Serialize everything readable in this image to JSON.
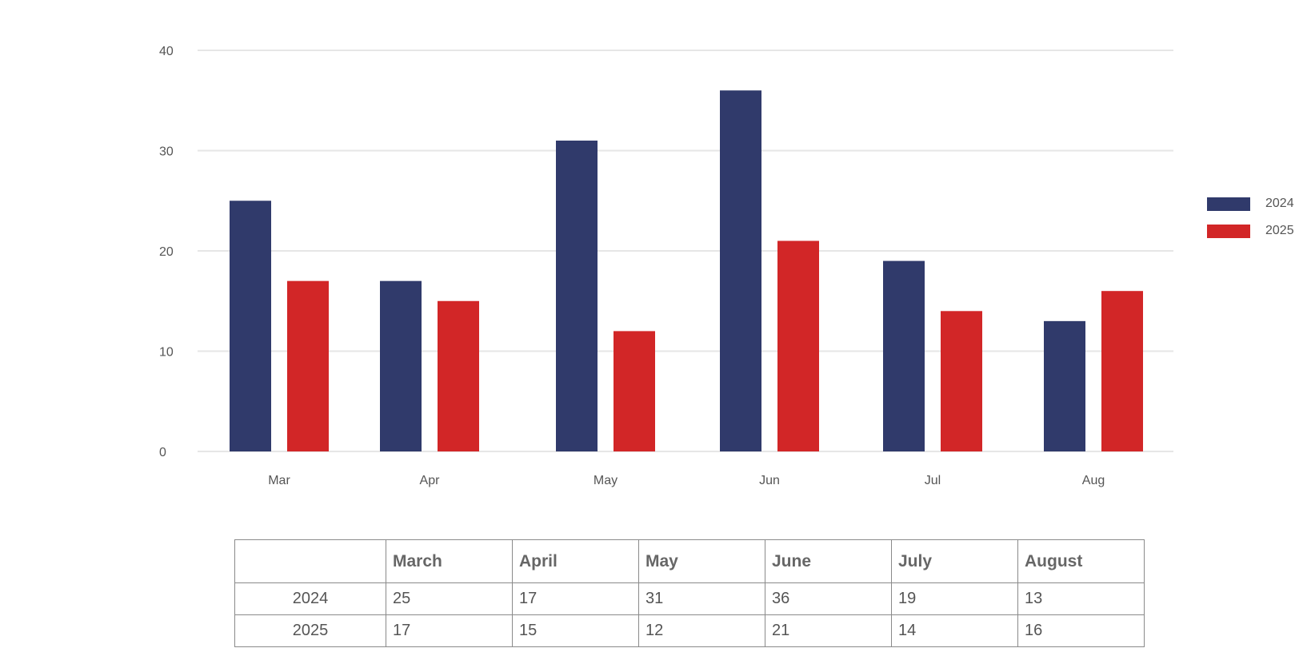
{
  "chart_data": {
    "type": "bar",
    "categories": [
      "Mar",
      "Apr",
      "May",
      "Jun",
      "Jul",
      "Aug"
    ],
    "series": [
      {
        "name": "2024",
        "values": [
          25,
          17,
          31,
          36,
          19,
          13
        ],
        "color": "#303a6b"
      },
      {
        "name": "2025",
        "values": [
          17,
          15,
          12,
          21,
          14,
          16
        ],
        "color": "#d22627"
      }
    ],
    "ylim": [
      0,
      40
    ],
    "yticks": [
      0,
      10,
      20,
      30,
      40
    ],
    "grid": true,
    "legend": "right",
    "title": "",
    "xlabel": "",
    "ylabel": ""
  },
  "table": {
    "headers": [
      "",
      "March",
      "April",
      "May",
      "June",
      "July",
      "August"
    ],
    "rows": [
      {
        "label": "2024",
        "cells": [
          "25",
          "17",
          "31",
          "36",
          "19",
          "13"
        ]
      },
      {
        "label": "2025",
        "cells": [
          "17",
          "15",
          "12",
          "21",
          "14",
          "16"
        ]
      }
    ]
  }
}
